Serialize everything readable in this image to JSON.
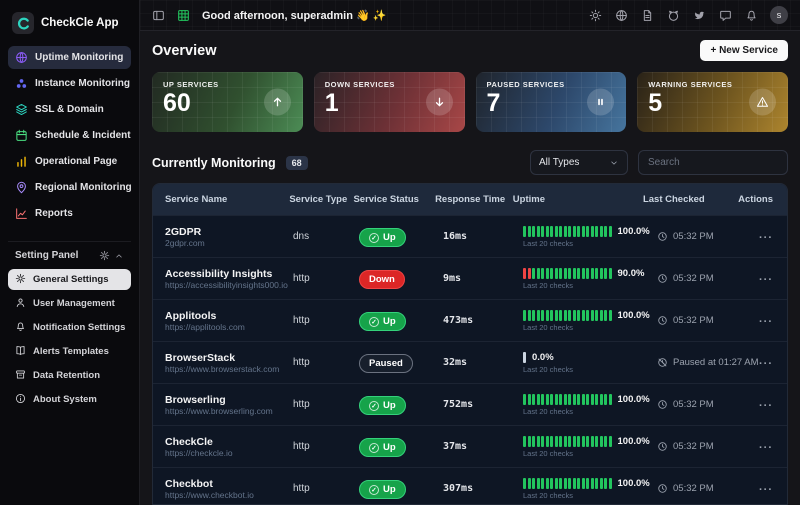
{
  "app": {
    "name": "CheckCle App",
    "logo_icon": "checkcle-logo-icon"
  },
  "colors": {
    "accent_teal": "#2dd4bf",
    "up_green": "#22c55e",
    "down_red": "#ef4444",
    "paused_blue": "#46759e",
    "warning_amber": "#ad852e"
  },
  "sidebar": {
    "nav_items": [
      {
        "label": "Uptime Monitoring",
        "icon": "globe-icon",
        "color": "#8b5cf6",
        "active": true
      },
      {
        "label": "Instance Monitoring",
        "icon": "cluster-icon",
        "color": "#6366f1",
        "active": false
      },
      {
        "label": "SSL & Domain",
        "icon": "layers-icon",
        "color": "#2dd4bf",
        "active": false
      },
      {
        "label": "Schedule & Incident",
        "icon": "calendar-icon",
        "color": "#4ade80",
        "active": false
      },
      {
        "label": "Operational Page",
        "icon": "bar-chart-icon",
        "color": "#eab308",
        "active": false
      },
      {
        "label": "Regional Monitoring",
        "icon": "map-pin-icon",
        "color": "#a78bfa",
        "active": false
      },
      {
        "label": "Reports",
        "icon": "line-chart-icon",
        "color": "#f87171",
        "active": false
      }
    ],
    "settings_header": {
      "label": "Setting Panel",
      "icons": [
        "gear-icon",
        "chevron-up-icon"
      ]
    },
    "settings_items": [
      {
        "label": "General Settings",
        "icon": "gear-icon",
        "active": true
      },
      {
        "label": "User Management",
        "icon": "user-icon",
        "active": false
      },
      {
        "label": "Notification Settings",
        "icon": "bell-icon",
        "active": false
      },
      {
        "label": "Alerts Templates",
        "icon": "book-icon",
        "active": false
      },
      {
        "label": "Data Retention",
        "icon": "archive-icon",
        "active": false
      },
      {
        "label": "About System",
        "icon": "info-icon",
        "active": false
      }
    ]
  },
  "topbar": {
    "left_icons": [
      "collapse-sidebar-icon",
      "grid-icon"
    ],
    "greeting": "Good afternoon, superadmin 👋 ✨",
    "right_icons": [
      "sun-icon",
      "globe-icon",
      "document-icon",
      "github-icon",
      "twitter-icon",
      "chat-icon",
      "bell-icon"
    ],
    "avatar": "s"
  },
  "overview": {
    "title": "Overview",
    "new_service_label": "+ New Service"
  },
  "stat_cards": [
    {
      "label": "UP SERVICES",
      "value": "60",
      "icon": "arrow-up-icon",
      "theme": "green"
    },
    {
      "label": "DOWN SERVICES",
      "value": "1",
      "icon": "arrow-down-icon",
      "theme": "red"
    },
    {
      "label": "PAUSED SERVICES",
      "value": "7",
      "icon": "pause-icon",
      "theme": "blue"
    },
    {
      "label": "WARNING SERVICES",
      "value": "5",
      "icon": "warning-icon",
      "theme": "amber"
    }
  ],
  "monitoring": {
    "title": "Currently Monitoring",
    "count": "68",
    "type_filter": "All Types",
    "search_placeholder": "Search"
  },
  "table": {
    "columns": [
      "Service Name",
      "Service Type",
      "Service Status",
      "Response Time",
      "Uptime",
      "Last Checked",
      "Actions"
    ],
    "actions_glyph": "···",
    "rows": [
      {
        "name": "2GDPR",
        "url": "2gdpr.com",
        "type": "dns",
        "status": "Up",
        "status_icon": "check-icon",
        "response_time": "16ms",
        "uptime_pct": "100.0%",
        "uptime_note": "Last 20 checks",
        "bars": {
          "red": 0,
          "green": 20,
          "gray": 0
        },
        "last_checked": "05:32 PM",
        "last_checked_icon": "clock-icon"
      },
      {
        "name": "Accessibility Insights",
        "url": "https://accessibilityinsights000.io",
        "type": "http",
        "status": "Down",
        "status_icon": "",
        "response_time": "9ms",
        "uptime_pct": "90.0%",
        "uptime_note": "Last 20 checks",
        "bars": {
          "red": 2,
          "green": 18,
          "gray": 0
        },
        "last_checked": "05:32 PM",
        "last_checked_icon": "clock-icon"
      },
      {
        "name": "Applitools",
        "url": "https://applitools.com",
        "type": "http",
        "status": "Up",
        "status_icon": "check-icon",
        "response_time": "473ms",
        "uptime_pct": "100.0%",
        "uptime_note": "Last 20 checks",
        "bars": {
          "red": 0,
          "green": 20,
          "gray": 0
        },
        "last_checked": "05:32 PM",
        "last_checked_icon": "clock-icon"
      },
      {
        "name": "BrowserStack",
        "url": "https://www.browserstack.com",
        "type": "http",
        "status": "Paused",
        "status_icon": "",
        "response_time": "32ms",
        "uptime_pct": "0.0%",
        "uptime_note": "Last 20 checks",
        "bars": {
          "red": 0,
          "green": 0,
          "gray": 1
        },
        "last_checked": "Paused at 01:27 AM",
        "last_checked_icon": "clock-off-icon"
      },
      {
        "name": "Browserling",
        "url": "https://www.browserling.com",
        "type": "http",
        "status": "Up",
        "status_icon": "check-icon",
        "response_time": "752ms",
        "uptime_pct": "100.0%",
        "uptime_note": "Last 20 checks",
        "bars": {
          "red": 0,
          "green": 20,
          "gray": 0
        },
        "last_checked": "05:32 PM",
        "last_checked_icon": "clock-icon"
      },
      {
        "name": "CheckCle",
        "url": "https://checkcle.io",
        "type": "http",
        "status": "Up",
        "status_icon": "check-icon",
        "response_time": "37ms",
        "uptime_pct": "100.0%",
        "uptime_note": "Last 20 checks",
        "bars": {
          "red": 0,
          "green": 20,
          "gray": 0
        },
        "last_checked": "05:32 PM",
        "last_checked_icon": "clock-icon"
      },
      {
        "name": "Checkbot",
        "url": "https://www.checkbot.io",
        "type": "http",
        "status": "Up",
        "status_icon": "check-icon",
        "response_time": "307ms",
        "uptime_pct": "100.0%",
        "uptime_note": "Last 20 checks",
        "bars": {
          "red": 0,
          "green": 20,
          "gray": 0
        },
        "last_checked": "05:32 PM",
        "last_checked_icon": "clock-icon"
      }
    ]
  }
}
